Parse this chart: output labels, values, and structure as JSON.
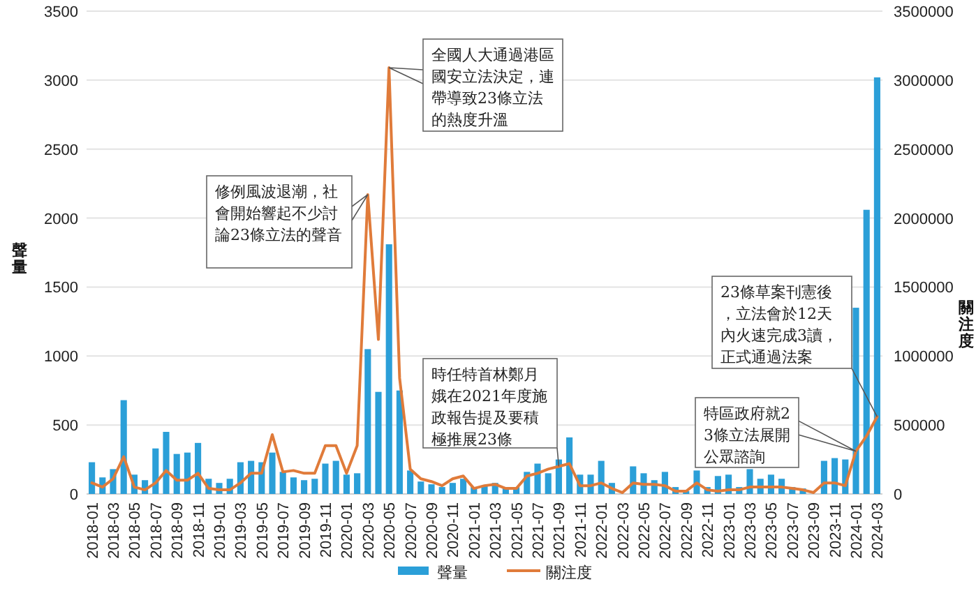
{
  "chart_data": {
    "type": "bar",
    "categories": [
      "2018-01",
      null,
      "2018-03",
      null,
      "2018-05",
      null,
      "2018-07",
      null,
      "2018-09",
      null,
      "2018-11",
      null,
      "2019-01",
      null,
      "2019-03",
      null,
      "2019-05",
      null,
      "2019-07",
      null,
      "2019-09",
      null,
      "2019-11",
      null,
      "2020-01",
      null,
      "2020-03",
      null,
      "2020-05",
      null,
      "2020-07",
      null,
      "2020-09",
      null,
      "2020-11",
      null,
      "2021-01",
      null,
      "2021-03",
      null,
      "2021-05",
      null,
      "2021-07",
      null,
      "2021-09",
      null,
      "2021-11",
      null,
      "2022-01",
      null,
      "2022-03",
      null,
      "2022-05",
      null,
      "2022-07",
      null,
      "2022-09",
      null,
      "2022-11",
      null,
      "2023-01",
      null,
      "2023-03",
      null,
      "2023-05",
      null,
      "2023-07",
      null,
      "2023-09",
      null,
      "2023-11",
      null,
      "2024-01",
      null,
      "2024-03"
    ],
    "series": [
      {
        "name": "聲量",
        "color": "#2b9fd8",
        "values": [
          230,
          120,
          180,
          680,
          140,
          100,
          330,
          450,
          290,
          300,
          370,
          110,
          80,
          110,
          230,
          240,
          230,
          300,
          160,
          120,
          100,
          110,
          220,
          240,
          140,
          150,
          1050,
          740,
          1810,
          750,
          170,
          90,
          70,
          50,
          80,
          110,
          50,
          60,
          80,
          50,
          50,
          160,
          220,
          150,
          250,
          410,
          140,
          140,
          240,
          80,
          null,
          200,
          150,
          100,
          160,
          50,
          20,
          170,
          50,
          130,
          140,
          50,
          180,
          110,
          140,
          110,
          50,
          40,
          null,
          240,
          260,
          250,
          1350,
          2060,
          3020
        ]
      },
      {
        "name": "關注度",
        "type": "line",
        "axis": "y2",
        "color": "#e07b3a",
        "values": [
          80000,
          50000,
          110000,
          270000,
          50000,
          30000,
          80000,
          170000,
          100000,
          100000,
          150000,
          40000,
          30000,
          30000,
          80000,
          150000,
          150000,
          430000,
          160000,
          170000,
          150000,
          150000,
          350000,
          350000,
          150000,
          350000,
          2170000,
          1120000,
          3090000,
          840000,
          180000,
          110000,
          90000,
          60000,
          110000,
          130000,
          40000,
          60000,
          70000,
          40000,
          40000,
          130000,
          150000,
          180000,
          200000,
          220000,
          60000,
          60000,
          80000,
          40000,
          10000,
          80000,
          70000,
          70000,
          60000,
          20000,
          20000,
          80000,
          30000,
          20000,
          30000,
          30000,
          50000,
          50000,
          50000,
          50000,
          40000,
          30000,
          10000,
          80000,
          80000,
          60000,
          310000,
          420000,
          560000
        ]
      }
    ],
    "ylim": [
      0,
      3500
    ],
    "yticks": [
      0,
      500,
      1000,
      1500,
      2000,
      2500,
      3000,
      3500
    ],
    "y2lim": [
      0,
      3500000
    ],
    "y2ticks": [
      0,
      500000,
      1000000,
      1500000,
      2000000,
      2500000,
      3000000,
      3500000
    ],
    "ylabel": "聲量",
    "y2label": "關注度",
    "grid": "y",
    "legend": "bottom",
    "annotations": [
      "修例風波退潮，社會開始響起不少討論23條立法的聲音",
      "全國人大通過港區國安立法決定，連帶導致23條立法的熱度升溫",
      "時任特首林鄭月娥在2021年度施政報告提及要積極推展23條",
      "特區政府就23條立法展開公眾諮詢",
      "23條草案刊憲後，立法會於12天內火速完成3讀，正式通過法案"
    ]
  }
}
